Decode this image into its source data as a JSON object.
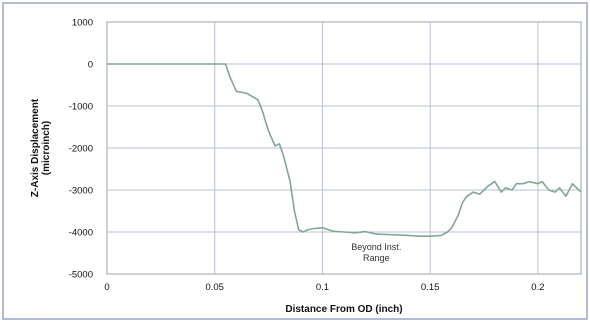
{
  "chart_data": {
    "type": "line",
    "xlabel": "Distance From OD (inch)",
    "ylabel": "Z-Axis Displacement",
    "ylabel_unit": "(microinch)",
    "xlim": [
      0,
      0.22
    ],
    "ylim": [
      -5000,
      1000
    ],
    "xticks": [
      0,
      0.05,
      0.1,
      0.15,
      0.2
    ],
    "xtick_labels": [
      "0",
      "0.05",
      "0.1",
      "0.15",
      "0.2"
    ],
    "yticks": [
      1000,
      0,
      -1000,
      -2000,
      -3000,
      -4000,
      -5000
    ],
    "ytick_labels": [
      "1000",
      "0",
      "-1000",
      "-2000",
      "-3000",
      "-4000",
      "-5000"
    ],
    "grid": true,
    "annotation": {
      "line1": "Beyond Inst.",
      "line2": "Range",
      "x": 0.125,
      "y": -4550
    },
    "series": [
      {
        "color": "#7fa893",
        "x": [
          0,
          0.01,
          0.02,
          0.03,
          0.04,
          0.05,
          0.055,
          0.057,
          0.06,
          0.065,
          0.07,
          0.072,
          0.075,
          0.078,
          0.08,
          0.082,
          0.085,
          0.087,
          0.089,
          0.091,
          0.093,
          0.096,
          0.1,
          0.105,
          0.11,
          0.115,
          0.12,
          0.125,
          0.13,
          0.135,
          0.14,
          0.145,
          0.15,
          0.155,
          0.158,
          0.16,
          0.163,
          0.165,
          0.167,
          0.17,
          0.173,
          0.175,
          0.177,
          0.18,
          0.183,
          0.185,
          0.188,
          0.19,
          0.193,
          0.196,
          0.2,
          0.202,
          0.205,
          0.208,
          0.21,
          0.213,
          0.216,
          0.22
        ],
        "y": [
          0,
          0,
          0,
          0,
          0,
          0,
          0,
          -300,
          -650,
          -700,
          -850,
          -1100,
          -1600,
          -1950,
          -1900,
          -2200,
          -2800,
          -3500,
          -3950,
          -4000,
          -3950,
          -3920,
          -3900,
          -3980,
          -4000,
          -4020,
          -3990,
          -4050,
          -4060,
          -4070,
          -4080,
          -4100,
          -4100,
          -4080,
          -4000,
          -3900,
          -3600,
          -3300,
          -3150,
          -3050,
          -3100,
          -3000,
          -2900,
          -2800,
          -3050,
          -2950,
          -3000,
          -2850,
          -2850,
          -2800,
          -2850,
          -2800,
          -3000,
          -3050,
          -2950,
          -3150,
          -2850,
          -3050
        ]
      }
    ]
  }
}
